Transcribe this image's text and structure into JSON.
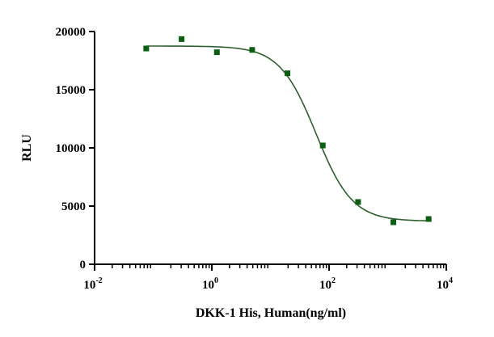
{
  "chart_data": {
    "type": "scatter",
    "title": "",
    "xlabel": "DKK-1 His, Human(ng/ml)",
    "ylabel": "RLU",
    "xscale": "log",
    "xlim": [
      0.01,
      10000
    ],
    "ylim": [
      0,
      20000
    ],
    "x_ticks": [
      {
        "base": "10",
        "exp": "-2",
        "value": 0.01
      },
      {
        "base": "10",
        "exp": "0",
        "value": 1
      },
      {
        "base": "10",
        "exp": "2",
        "value": 100
      },
      {
        "base": "10",
        "exp": "4",
        "value": 10000
      }
    ],
    "y_ticks": [
      "0",
      "5000",
      "10000",
      "15000",
      "20000"
    ],
    "grid": false,
    "series": [
      {
        "name": "DKK-1 His, Human",
        "color": "#0b5e12",
        "marker": "square",
        "x": [
          0.076,
          0.305,
          1.22,
          4.88,
          19.5,
          78.1,
          312.5,
          1250,
          5000
        ],
        "y": [
          18540,
          19350,
          18220,
          18420,
          16410,
          10210,
          5350,
          3610,
          3890
        ]
      }
    ],
    "fit": {
      "model": "4PL",
      "top": 18750,
      "bottom": 3700,
      "ic50": 60,
      "hill": 1.4,
      "color": "#2f5e2f"
    }
  }
}
